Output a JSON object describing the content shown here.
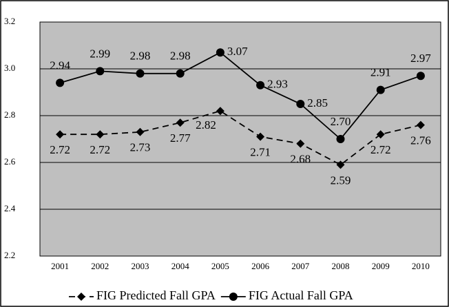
{
  "chart_data": {
    "type": "line",
    "categories": [
      "2001",
      "2002",
      "2003",
      "2004",
      "2005",
      "2006",
      "2007",
      "2008",
      "2009",
      "2010"
    ],
    "series": [
      {
        "name": "FIG Predicted Fall GPA",
        "color": "#000000",
        "dash": true,
        "marker": "diamond",
        "values": [
          2.72,
          2.72,
          2.73,
          2.77,
          2.82,
          2.71,
          2.68,
          2.59,
          2.72,
          2.76
        ],
        "value_labels": [
          "2.72",
          "2.72",
          "2.73",
          "2.77",
          "2.82",
          "2.71",
          "2.68",
          "2.59",
          "2.72",
          "2.76"
        ]
      },
      {
        "name": "FIG Actual Fall GPA",
        "color": "#000000",
        "dash": false,
        "marker": "circle",
        "values": [
          2.94,
          2.99,
          2.98,
          2.98,
          3.07,
          2.93,
          2.85,
          2.7,
          2.91,
          2.97
        ],
        "value_labels": [
          "2.94",
          "2.99",
          "2.98",
          "2.98",
          "3.07",
          "2.93",
          "2.85",
          "2.70",
          "2.91",
          "2.97"
        ]
      }
    ],
    "ylim": [
      2.2,
      3.2
    ],
    "yticks": [
      2.2,
      2.4,
      2.6,
      2.8,
      {
        "value": 3.0,
        "label": "3.0"
      },
      3.2
    ],
    "grid": true,
    "legend": "bottom"
  }
}
